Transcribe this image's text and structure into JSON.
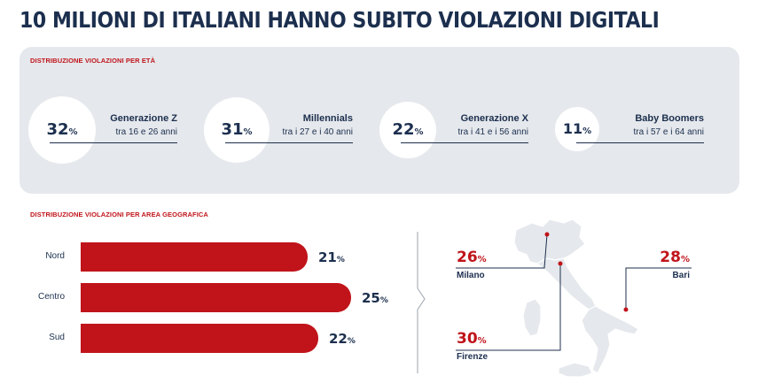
{
  "title": "10 MILIONI DI ITALIANI HANNO SUBITO VIOLAZIONI DIGITALI",
  "age_section": {
    "label": "DISTRIBUZIONE VIOLAZIONI PER ETÀ",
    "groups": [
      {
        "pct": "32",
        "unit": "%",
        "name": "Generazione Z",
        "range": "tra 16 e 26 anni"
      },
      {
        "pct": "31",
        "unit": "%",
        "name": "Millennials",
        "range": "tra i 27 e i 40 anni"
      },
      {
        "pct": "22",
        "unit": "%",
        "name": "Generazione X",
        "range": "tra i 41 e i 56 anni"
      },
      {
        "pct": "11",
        "unit": "%",
        "name": "Baby Boomers",
        "range": "tra i 57 e i 64 anni"
      }
    ]
  },
  "geo_section": {
    "label": "DISTRIBUZIONE VIOLAZIONI PER AREA GEOGRAFICA"
  },
  "cities": [
    {
      "pct": "26",
      "unit": "%",
      "name": "Milano"
    },
    {
      "pct": "28",
      "unit": "%",
      "name": "Bari"
    },
    {
      "pct": "30",
      "unit": "%",
      "name": "Firenze"
    }
  ],
  "colors": {
    "accent": "#c0141a",
    "text": "#1c2f4e",
    "panel": "#e5e8ec"
  },
  "chart_data": [
    {
      "type": "bubble",
      "title": "DISTRIBUZIONE VIOLAZIONI PER ETÀ",
      "categories": [
        "Generazione Z",
        "Millennials",
        "Generazione X",
        "Baby Boomers"
      ],
      "values": [
        32,
        31,
        22,
        11
      ]
    },
    {
      "type": "bar",
      "orientation": "horizontal",
      "title": "DISTRIBUZIONE VIOLAZIONI PER AREA GEOGRAFICA",
      "categories": [
        "Nord",
        "Centro",
        "Sud"
      ],
      "values": [
        21,
        25,
        22
      ],
      "value_suffix": "%"
    }
  ]
}
